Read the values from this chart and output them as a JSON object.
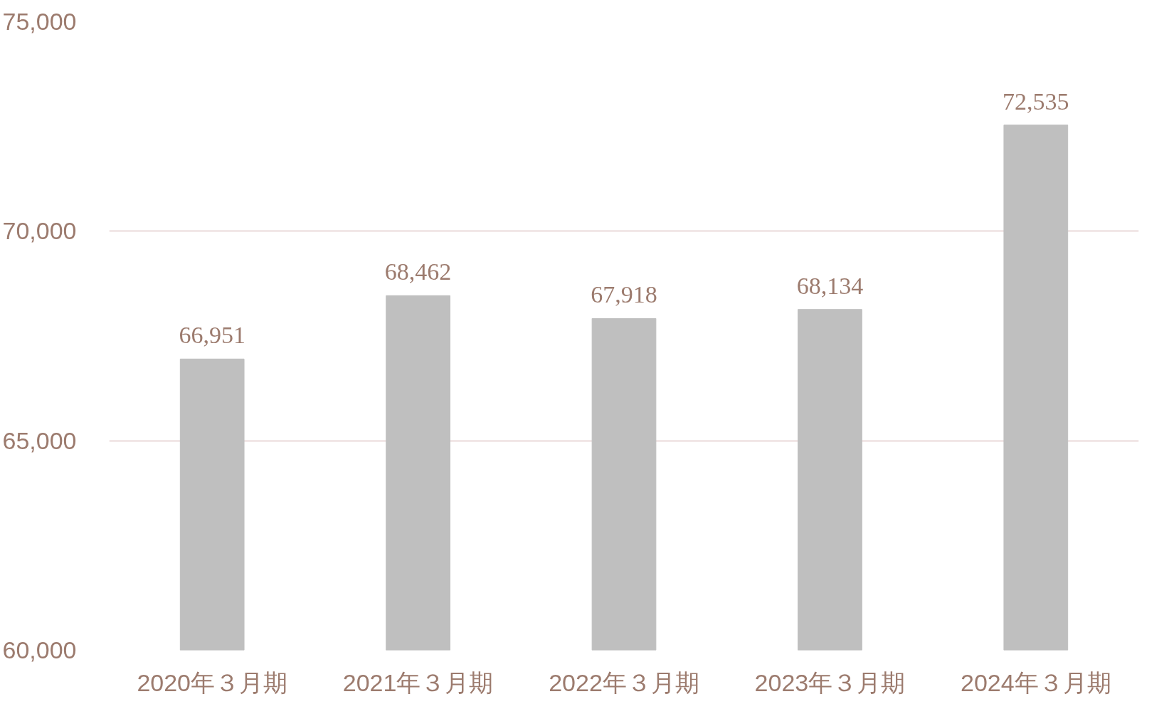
{
  "chart_data": {
    "type": "bar",
    "categories": [
      "2020年３月期",
      "2021年３月期",
      "2022年３月期",
      "2023年３月期",
      "2024年３月期"
    ],
    "values": [
      66951,
      68462,
      67918,
      68134,
      72535
    ],
    "value_labels": [
      "66,951",
      "68,462",
      "67,918",
      "68,134",
      "72,535"
    ],
    "color": "#bfbfbf",
    "ylim": [
      60000,
      75000
    ],
    "yticks": [
      {
        "value": 60000,
        "label": "60,000"
      },
      {
        "value": 65000,
        "label": "65,000"
      },
      {
        "value": 70000,
        "label": "70,000"
      },
      {
        "value": 75000,
        "label": "75,000"
      }
    ],
    "grid": "y"
  }
}
